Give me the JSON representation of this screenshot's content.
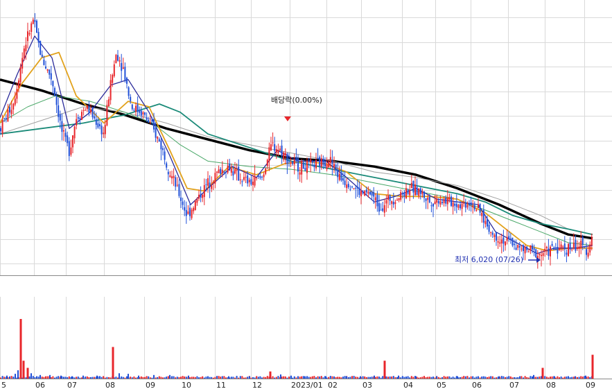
{
  "chart_data": {
    "type": "candlestick",
    "colors": {
      "up": "#e8262b",
      "down": "#2050d8",
      "ma_black": "#000000",
      "ma_gray": "#a0a0a0",
      "ma_teal": "#1a8a78",
      "ma_green": "#4aa868",
      "ma_orange": "#e2a21c",
      "ma_navy": "#2a2a9a",
      "ma_purple": "#9a4ab0",
      "volume_up": "#e8262b",
      "volume_down": "#2050d8"
    },
    "x_labels": [
      "5",
      "06",
      "07",
      "08",
      "09",
      "10",
      "11",
      "12",
      "2023/01",
      "02",
      "03",
      "04",
      "05",
      "06",
      "07",
      "08",
      "09"
    ],
    "price_series": [
      {
        "t": 0,
        "v": 8400
      },
      {
        "t": 20,
        "v": 8900
      },
      {
        "t": 35,
        "v": 9900
      },
      {
        "t": 48,
        "v": 10400
      },
      {
        "t": 60,
        "v": 9700
      },
      {
        "t": 75,
        "v": 9300
      },
      {
        "t": 90,
        "v": 8300
      },
      {
        "t": 100,
        "v": 8000
      },
      {
        "t": 110,
        "v": 8600
      },
      {
        "t": 125,
        "v": 8800
      },
      {
        "t": 140,
        "v": 8500
      },
      {
        "t": 150,
        "v": 8300
      },
      {
        "t": 158,
        "v": 9100
      },
      {
        "t": 168,
        "v": 9800
      },
      {
        "t": 178,
        "v": 9500
      },
      {
        "t": 190,
        "v": 8800
      },
      {
        "t": 205,
        "v": 8700
      },
      {
        "t": 220,
        "v": 8400
      },
      {
        "t": 232,
        "v": 8100
      },
      {
        "t": 245,
        "v": 7600
      },
      {
        "t": 258,
        "v": 7200
      },
      {
        "t": 270,
        "v": 6800
      },
      {
        "t": 285,
        "v": 7100
      },
      {
        "t": 300,
        "v": 7400
      },
      {
        "t": 315,
        "v": 7600
      },
      {
        "t": 330,
        "v": 7700
      },
      {
        "t": 345,
        "v": 7500
      },
      {
        "t": 360,
        "v": 7400
      },
      {
        "t": 378,
        "v": 7500
      },
      {
        "t": 392,
        "v": 8100
      },
      {
        "t": 405,
        "v": 8000
      },
      {
        "t": 418,
        "v": 7800
      },
      {
        "t": 430,
        "v": 7700
      },
      {
        "t": 445,
        "v": 7700
      },
      {
        "t": 460,
        "v": 7750
      },
      {
        "t": 475,
        "v": 7850
      },
      {
        "t": 490,
        "v": 7500
      },
      {
        "t": 505,
        "v": 7400
      },
      {
        "t": 520,
        "v": 7200
      },
      {
        "t": 535,
        "v": 7200
      },
      {
        "t": 548,
        "v": 6950
      },
      {
        "t": 562,
        "v": 7100
      },
      {
        "t": 576,
        "v": 7150
      },
      {
        "t": 590,
        "v": 7300
      },
      {
        "t": 605,
        "v": 7250
      },
      {
        "t": 620,
        "v": 7050
      },
      {
        "t": 635,
        "v": 7100
      },
      {
        "t": 650,
        "v": 7050
      },
      {
        "t": 665,
        "v": 7000
      },
      {
        "t": 680,
        "v": 7050
      },
      {
        "t": 695,
        "v": 6800
      },
      {
        "t": 710,
        "v": 6450
      },
      {
        "t": 725,
        "v": 6350
      },
      {
        "t": 740,
        "v": 6300
      },
      {
        "t": 752,
        "v": 6150
      },
      {
        "t": 765,
        "v": 6150
      },
      {
        "t": 778,
        "v": 6080
      },
      {
        "t": 790,
        "v": 6150
      },
      {
        "t": 805,
        "v": 6200
      },
      {
        "t": 820,
        "v": 6200
      },
      {
        "t": 835,
        "v": 6250
      },
      {
        "t": 848,
        "v": 6150
      },
      {
        "t": 855,
        "v": 6500
      }
    ],
    "moving_averages": [
      {
        "color_key": "ma_black",
        "width": 3.5,
        "points": [
          [
            0,
            9300
          ],
          [
            60,
            9100
          ],
          [
            120,
            8850
          ],
          [
            180,
            8650
          ],
          [
            240,
            8400
          ],
          [
            300,
            8200
          ],
          [
            360,
            8000
          ],
          [
            420,
            7850
          ],
          [
            480,
            7800
          ],
          [
            540,
            7700
          ],
          [
            600,
            7550
          ],
          [
            660,
            7300
          ],
          [
            720,
            7000
          ],
          [
            780,
            6650
          ],
          [
            820,
            6450
          ],
          [
            855,
            6380
          ]
        ]
      },
      {
        "color_key": "ma_gray",
        "width": 1,
        "points": [
          [
            0,
            8300
          ],
          [
            60,
            8550
          ],
          [
            120,
            8800
          ],
          [
            180,
            8700
          ],
          [
            240,
            8500
          ],
          [
            300,
            8250
          ],
          [
            360,
            8100
          ],
          [
            420,
            7950
          ],
          [
            480,
            7800
          ],
          [
            540,
            7600
          ],
          [
            600,
            7500
          ],
          [
            660,
            7350
          ],
          [
            720,
            7100
          ],
          [
            780,
            6800
          ],
          [
            820,
            6550
          ],
          [
            855,
            6450
          ]
        ]
      },
      {
        "color_key": "ma_teal",
        "width": 1.8,
        "points": [
          [
            0,
            8300
          ],
          [
            60,
            8400
          ],
          [
            120,
            8500
          ],
          [
            180,
            8650
          ],
          [
            230,
            8850
          ],
          [
            260,
            8700
          ],
          [
            300,
            8300
          ],
          [
            360,
            8050
          ],
          [
            420,
            7800
          ],
          [
            480,
            7650
          ],
          [
            540,
            7500
          ],
          [
            600,
            7350
          ],
          [
            660,
            7200
          ],
          [
            700,
            7050
          ],
          [
            740,
            6800
          ],
          [
            780,
            6650
          ],
          [
            820,
            6550
          ],
          [
            855,
            6450
          ]
        ]
      },
      {
        "color_key": "ma_green",
        "width": 1,
        "points": [
          [
            0,
            8500
          ],
          [
            40,
            8800
          ],
          [
            80,
            9000
          ],
          [
            130,
            8900
          ],
          [
            180,
            8700
          ],
          [
            220,
            8500
          ],
          [
            260,
            8100
          ],
          [
            300,
            7800
          ],
          [
            360,
            7700
          ],
          [
            420,
            7650
          ],
          [
            480,
            7550
          ],
          [
            540,
            7400
          ],
          [
            600,
            7250
          ],
          [
            660,
            7100
          ],
          [
            700,
            6900
          ],
          [
            740,
            6700
          ],
          [
            780,
            6500
          ],
          [
            820,
            6300
          ],
          [
            855,
            6250
          ]
        ]
      },
      {
        "color_key": "ma_orange",
        "width": 1.8,
        "points": [
          [
            0,
            8500
          ],
          [
            30,
            9200
          ],
          [
            60,
            9700
          ],
          [
            85,
            9800
          ],
          [
            110,
            9000
          ],
          [
            150,
            8500
          ],
          [
            185,
            8900
          ],
          [
            215,
            8800
          ],
          [
            245,
            8000
          ],
          [
            270,
            7300
          ],
          [
            295,
            7250
          ],
          [
            330,
            7700
          ],
          [
            370,
            7550
          ],
          [
            410,
            7750
          ],
          [
            440,
            7800
          ],
          [
            470,
            7750
          ],
          [
            500,
            7600
          ],
          [
            540,
            7200
          ],
          [
            580,
            7150
          ],
          [
            620,
            7150
          ],
          [
            660,
            7100
          ],
          [
            700,
            6850
          ],
          [
            730,
            6550
          ],
          [
            760,
            6250
          ],
          [
            790,
            6150
          ],
          [
            820,
            6200
          ],
          [
            855,
            6200
          ]
        ]
      },
      {
        "color_key": "ma_navy",
        "width": 1.3,
        "points": [
          [
            0,
            8600
          ],
          [
            25,
            9400
          ],
          [
            50,
            10100
          ],
          [
            75,
            9700
          ],
          [
            100,
            8400
          ],
          [
            130,
            8700
          ],
          [
            160,
            9200
          ],
          [
            185,
            9300
          ],
          [
            215,
            8700
          ],
          [
            245,
            7900
          ],
          [
            275,
            7000
          ],
          [
            300,
            7300
          ],
          [
            335,
            7700
          ],
          [
            370,
            7500
          ],
          [
            400,
            8000
          ],
          [
            430,
            7800
          ],
          [
            470,
            7800
          ],
          [
            500,
            7500
          ],
          [
            540,
            7050
          ],
          [
            570,
            7150
          ],
          [
            600,
            7300
          ],
          [
            630,
            7100
          ],
          [
            660,
            7050
          ],
          [
            690,
            7000
          ],
          [
            715,
            6500
          ],
          [
            745,
            6300
          ],
          [
            775,
            6100
          ],
          [
            800,
            6200
          ],
          [
            830,
            6200
          ],
          [
            855,
            6250
          ]
        ]
      }
    ],
    "volume": {
      "max": 100,
      "spikes": [
        {
          "t": 30,
          "v": 100
        },
        {
          "t": 34,
          "v": 30
        },
        {
          "t": 40,
          "v": 18
        },
        {
          "t": 163,
          "v": 53
        },
        {
          "t": 390,
          "v": 12
        },
        {
          "t": 555,
          "v": 30
        },
        {
          "t": 783,
          "v": 18
        },
        {
          "t": 855,
          "v": 40
        }
      ],
      "base": [
        {
          "t": 10,
          "v": 5
        },
        {
          "t": 22,
          "v": 8
        },
        {
          "t": 26,
          "v": 14
        },
        {
          "t": 45,
          "v": 9
        },
        {
          "t": 58,
          "v": 6
        },
        {
          "t": 72,
          "v": 6
        },
        {
          "t": 88,
          "v": 5
        },
        {
          "t": 104,
          "v": 4
        },
        {
          "t": 120,
          "v": 5
        },
        {
          "t": 140,
          "v": 5
        },
        {
          "t": 172,
          "v": 9
        },
        {
          "t": 185,
          "v": 8
        },
        {
          "t": 200,
          "v": 5
        },
        {
          "t": 222,
          "v": 6
        },
        {
          "t": 245,
          "v": 6
        },
        {
          "t": 272,
          "v": 5
        },
        {
          "t": 300,
          "v": 4
        },
        {
          "t": 330,
          "v": 4
        },
        {
          "t": 360,
          "v": 4
        },
        {
          "t": 405,
          "v": 7
        },
        {
          "t": 420,
          "v": 5
        },
        {
          "t": 440,
          "v": 4
        },
        {
          "t": 470,
          "v": 4
        },
        {
          "t": 500,
          "v": 4
        },
        {
          "t": 520,
          "v": 4
        },
        {
          "t": 540,
          "v": 5
        },
        {
          "t": 575,
          "v": 5
        },
        {
          "t": 600,
          "v": 4
        },
        {
          "t": 630,
          "v": 4
        },
        {
          "t": 660,
          "v": 4
        },
        {
          "t": 690,
          "v": 4
        },
        {
          "t": 720,
          "v": 4
        },
        {
          "t": 750,
          "v": 4
        },
        {
          "t": 770,
          "v": 6
        },
        {
          "t": 800,
          "v": 4
        },
        {
          "t": 830,
          "v": 4
        },
        {
          "t": 845,
          "v": 5
        }
      ]
    },
    "price_range": [
      5700,
      10700
    ]
  },
  "annotations": {
    "dividend_label": "배당락(0.00%)",
    "low_label": "최저 6,020 (07/26)"
  }
}
